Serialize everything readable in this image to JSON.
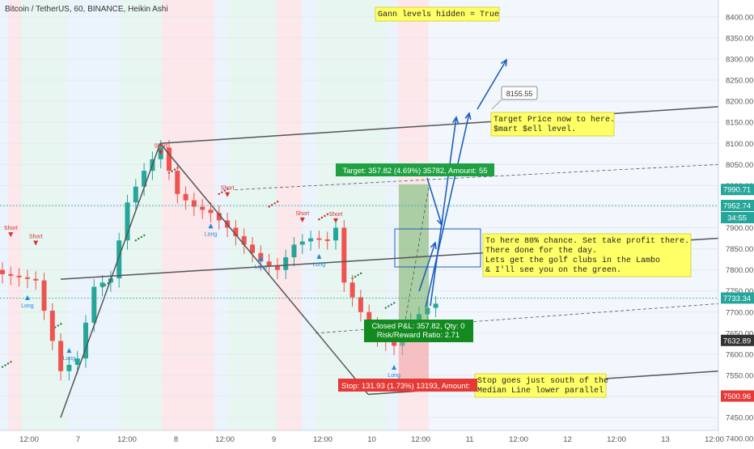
{
  "header": {
    "title": "Bitcoin / TetherUS, 60, BINANCE, Heikin Ashi"
  },
  "colors": {
    "bull": "#26a69a",
    "bear": "#ef5350",
    "green_band": "#e3f5ee",
    "red_band": "#fbe3e6",
    "blue_band": "#e8f2fc",
    "line": "#555555",
    "arrow": "#1f5fbf",
    "note_bg": "#ffff66",
    "target_box": "#1fa141",
    "stop_box": "#e53935",
    "pnl_box": "#138a1f"
  },
  "chart_data": {
    "type": "candlestick",
    "symbol": "Bitcoin / TetherUS",
    "interval": "60",
    "exchange": "BINANCE",
    "style": "Heikin Ashi",
    "ylim": [
      7385,
      8440
    ],
    "y_ticks": [
      "8400.00",
      "8350.00",
      "8300.00",
      "8250.00",
      "8200.00",
      "8150.00",
      "8100.00",
      "8050.00",
      "8000.00",
      "7950.00",
      "7900.00",
      "7850.00",
      "7800.00",
      "7750.00",
      "7700.00",
      "7650.00",
      "7600.00",
      "7550.00",
      "7500.00",
      "7450.00",
      "7400.00"
    ],
    "x_ticks": [
      "12:00",
      "7",
      "12:00",
      "8",
      "12:00",
      "9",
      "12:00",
      "10",
      "12:00",
      "11",
      "12:00",
      "12",
      "12:00",
      "13",
      "12:00"
    ],
    "price_labels": [
      {
        "value": 7990.71,
        "text": "7990.71",
        "color": "#26a69a"
      },
      {
        "value": 7952.74,
        "text": "7952.74",
        "color": "#26a69a"
      },
      {
        "value": 7924.0,
        "text": "34:55",
        "color": "#26a69a"
      },
      {
        "value": 7733.34,
        "text": "7733.34",
        "color": "#26a69a"
      },
      {
        "value": 7632.89,
        "text": "7632.89",
        "color": "#333333"
      },
      {
        "value": 7500.96,
        "text": "7500.96",
        "color": "#e53935"
      }
    ],
    "signals": [
      {
        "label": "Short",
        "x": 1,
        "price": 7895
      },
      {
        "label": "Short",
        "x": 4,
        "price": 7875
      },
      {
        "label": "Long",
        "x": 3,
        "price": 7740
      },
      {
        "label": "Long",
        "x": 8,
        "price": 7615
      },
      {
        "label": "Short",
        "x": 19,
        "price": 8090
      },
      {
        "label": "Short",
        "x": 27,
        "price": 7990
      },
      {
        "label": "Long",
        "x": 25,
        "price": 7910
      },
      {
        "label": "Short",
        "x": 36,
        "price": 7930
      },
      {
        "label": "Short",
        "x": 40,
        "price": 7928
      },
      {
        "label": "Long",
        "x": 31,
        "price": 7832
      },
      {
        "label": "Long",
        "x": 38,
        "price": 7838
      },
      {
        "label": "Long",
        "x": 47,
        "price": 7575
      }
    ],
    "annotations": {
      "gann": "Gann levels hidden = True",
      "target_price": "8155.55",
      "note_target": [
        "Target Price now to here.",
        "$mart $ell level."
      ],
      "note_chance": [
        "To here 80% chance.  Set take profit there.",
        "There done for the day.",
        "Lets get the golf clubs in the Lambo",
        "& I'll see you on the green."
      ],
      "note_stop": [
        "Stop goes just south of the",
        "Median Line lower parallel"
      ],
      "target_label": "Target: 357.82 (4.69%) 35782, Amount: 55",
      "stop_label": "Stop: 131.93 (1.73%) 13193, Amount:",
      "pnl_label": [
        "Closed P&L: 357.82, Qty: 0",
        "Risk/Reward Ratio: 2.71"
      ]
    }
  }
}
